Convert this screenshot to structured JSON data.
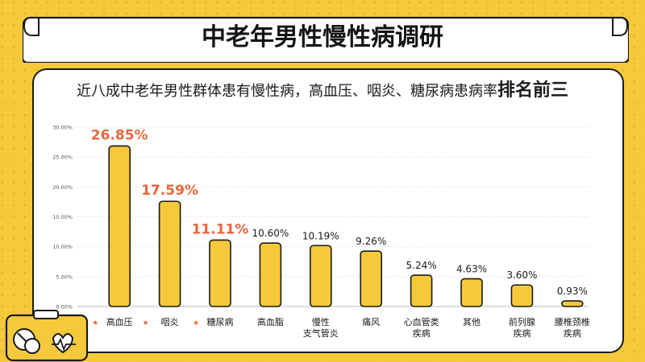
{
  "header": {
    "title": "中老年男性慢性病调研",
    "subtitle_main": "近八成中老年男性群体患有慢性病，高血压、咽炎、糖尿病患病率",
    "subtitle_highlight": "排名前三"
  },
  "colors": {
    "background": "#f7c93a",
    "bar": "#f5c93b",
    "bar_outline": "#1a1a1a",
    "highlight_label": "#e8663d",
    "star": "#e8663d"
  },
  "chart_data": {
    "type": "bar",
    "categories": [
      [
        "高血压"
      ],
      [
        "咽炎"
      ],
      [
        "糖尿病"
      ],
      [
        "高血脂"
      ],
      [
        "慢性",
        "支气管炎"
      ],
      [
        "痛风"
      ],
      [
        "心血管类",
        "疾病"
      ],
      [
        "其他"
      ],
      [
        "前列腺",
        "疾病"
      ],
      [
        "腰椎颈椎",
        "疾病"
      ]
    ],
    "values": [
      26.85,
      17.59,
      11.11,
      10.6,
      10.19,
      9.26,
      5.24,
      4.63,
      3.6,
      0.93
    ],
    "value_labels": [
      "26.85%",
      "17.59%",
      "11.11%",
      "10.60%",
      "10.19%",
      "9.26%",
      "5.24%",
      "4.63%",
      "3.60%",
      "0.93%"
    ],
    "highlighted": [
      true,
      true,
      true,
      false,
      false,
      false,
      false,
      false,
      false,
      false
    ],
    "star_marker": "★",
    "yticks": [
      "0.00%",
      "5.00%",
      "10.00%",
      "15.00%",
      "20.00%",
      "25.00%",
      "30.00%"
    ],
    "ylim": [
      0,
      30
    ],
    "grid": true,
    "xlabel": "",
    "ylabel": ""
  }
}
